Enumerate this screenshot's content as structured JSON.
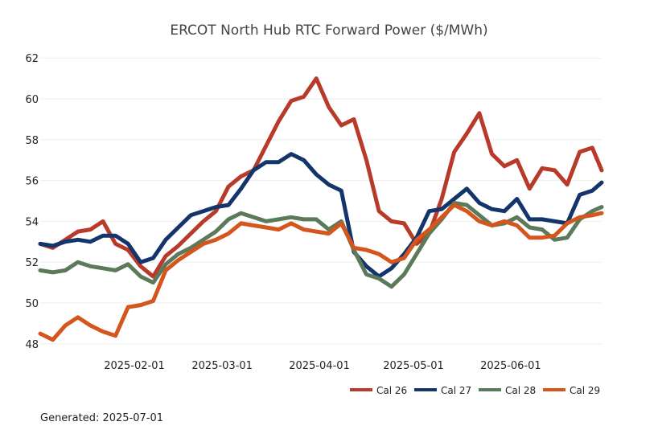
{
  "chart_data": {
    "type": "line",
    "title": "ERCOT North Hub RTC Forward Power ($/MWh)",
    "xlabel": "",
    "ylabel": "",
    "x_range": [
      "2025-01-02",
      "2025-06-30"
    ],
    "ylim": [
      47.6,
      62.4
    ],
    "y_ticks": [
      48,
      50,
      52,
      54,
      56,
      58,
      60,
      62
    ],
    "x_ticks": [
      "2025-02-01",
      "2025-03-01",
      "2025-04-01",
      "2025-05-01",
      "2025-06-01"
    ],
    "grid": "horizontal",
    "legend_position": "bottom-right",
    "x": [
      "2025-01-02",
      "2025-01-06",
      "2025-01-10",
      "2025-01-14",
      "2025-01-18",
      "2025-01-22",
      "2025-01-26",
      "2025-01-30",
      "2025-02-03",
      "2025-02-07",
      "2025-02-11",
      "2025-02-15",
      "2025-02-19",
      "2025-02-23",
      "2025-02-27",
      "2025-03-03",
      "2025-03-07",
      "2025-03-11",
      "2025-03-15",
      "2025-03-19",
      "2025-03-23",
      "2025-03-27",
      "2025-03-31",
      "2025-04-04",
      "2025-04-08",
      "2025-04-12",
      "2025-04-16",
      "2025-04-20",
      "2025-04-24",
      "2025-04-28",
      "2025-05-02",
      "2025-05-06",
      "2025-05-10",
      "2025-05-14",
      "2025-05-18",
      "2025-05-22",
      "2025-05-26",
      "2025-05-30",
      "2025-06-03",
      "2025-06-07",
      "2025-06-11",
      "2025-06-15",
      "2025-06-19",
      "2025-06-23",
      "2025-06-27",
      "2025-06-30"
    ],
    "series": [
      {
        "name": "Cal 26",
        "color": "#b83a2a",
        "values": [
          52.9,
          52.7,
          53.1,
          53.5,
          53.6,
          54.0,
          52.9,
          52.6,
          51.8,
          51.3,
          52.3,
          52.8,
          53.4,
          54.0,
          54.5,
          55.7,
          56.2,
          56.5,
          57.7,
          58.9,
          59.9,
          60.1,
          61.0,
          59.6,
          58.7,
          59.0,
          57.0,
          54.5,
          54.0,
          53.9,
          52.9,
          53.4,
          55.1,
          57.4,
          58.3,
          59.3,
          57.3,
          56.7,
          57.0,
          55.6,
          56.6,
          56.5,
          55.8,
          57.4,
          57.6,
          56.5
        ]
      },
      {
        "name": "Cal 27",
        "color": "#14356b",
        "values": [
          52.9,
          52.8,
          53.0,
          53.1,
          53.0,
          53.3,
          53.3,
          52.9,
          52.0,
          52.2,
          53.1,
          53.7,
          54.3,
          54.5,
          54.7,
          54.8,
          55.6,
          56.5,
          56.9,
          56.9,
          57.3,
          57.0,
          56.3,
          55.8,
          55.5,
          52.5,
          51.8,
          51.3,
          51.7,
          52.4,
          53.2,
          54.5,
          54.6,
          55.1,
          55.6,
          54.9,
          54.6,
          54.5,
          55.1,
          54.1,
          54.1,
          54.0,
          53.9,
          55.3,
          55.5,
          55.9
        ]
      },
      {
        "name": "Cal 28",
        "color": "#5b7a5a",
        "values": [
          51.6,
          51.5,
          51.6,
          52.0,
          51.8,
          51.7,
          51.6,
          51.9,
          51.3,
          51.0,
          51.9,
          52.4,
          52.7,
          53.1,
          53.5,
          54.1,
          54.4,
          54.2,
          54.0,
          54.1,
          54.2,
          54.1,
          54.1,
          53.6,
          54.0,
          52.6,
          51.4,
          51.2,
          50.8,
          51.4,
          52.4,
          53.4,
          54.1,
          54.9,
          54.8,
          54.3,
          53.8,
          53.9,
          54.2,
          53.7,
          53.6,
          53.1,
          53.2,
          54.1,
          54.5,
          54.7
        ]
      },
      {
        "name": "Cal 29",
        "color": "#d4561d",
        "values": [
          48.5,
          48.2,
          48.9,
          49.3,
          48.9,
          48.6,
          48.4,
          49.8,
          49.9,
          50.1,
          51.6,
          52.1,
          52.5,
          52.9,
          53.1,
          53.4,
          53.9,
          53.8,
          53.7,
          53.6,
          53.9,
          53.6,
          53.5,
          53.4,
          53.9,
          52.7,
          52.6,
          52.4,
          52.0,
          52.2,
          53.1,
          53.6,
          54.2,
          54.8,
          54.5,
          54.0,
          53.8,
          54.0,
          53.8,
          53.2,
          53.2,
          53.3,
          53.9,
          54.2,
          54.3,
          54.4
        ]
      }
    ],
    "footer": "Generated: 2025-07-01"
  }
}
